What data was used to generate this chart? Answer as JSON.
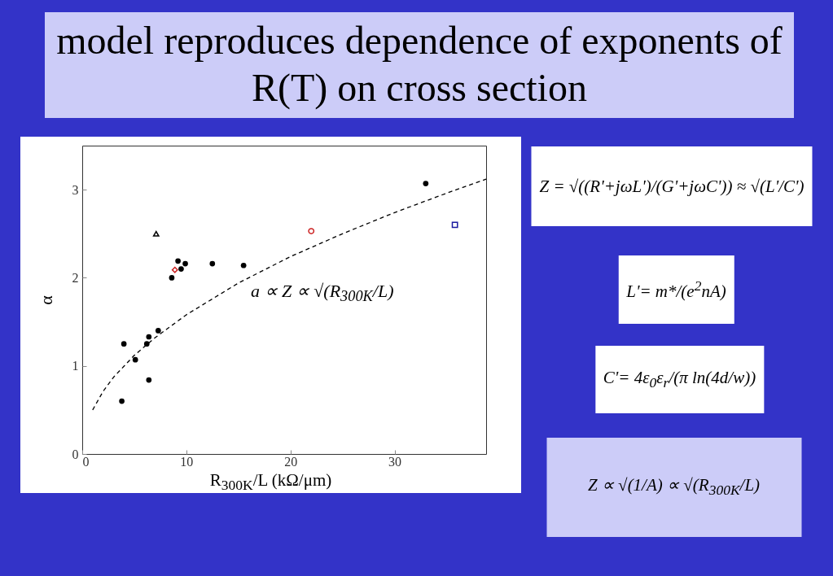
{
  "chart_data": {
    "type": "scatter",
    "title": "model reproduces dependence of exponents of R(T) on cross section",
    "xlabel": "R$_{300K}$/L (kΩ/μm)",
    "ylabel": "α",
    "xlim": [
      0,
      38.8
    ],
    "ylim": [
      0,
      3.5
    ],
    "xticks": [
      0,
      10,
      20,
      30
    ],
    "yticks": [
      0,
      1,
      2,
      3
    ],
    "grid": false,
    "annotations": [
      "a ∝ Z ∝ √(R$_{300K}$/L)",
      "Z = √((R'+jωL')/(G'+jωC')) ≈ √(L'/C')",
      "L'= m*/(e$^{2}$nA)",
      "C'= 4ε$_{0}$ε$_{r}$/(π ln(4d/w))",
      "Z ∝ √(1/A) ∝ √(R$_{300K}$/L)"
    ],
    "series": [
      {
        "marker": "circle",
        "color": "#000000",
        "x": [
          3.8,
          4.0,
          5.1,
          6.2,
          6.4,
          6.4,
          7.3,
          8.6,
          9.2,
          9.5,
          9.9,
          12.5,
          15.5,
          33.0
        ],
        "values": [
          0.6,
          1.25,
          1.07,
          1.25,
          1.33,
          0.84,
          1.4,
          2.0,
          2.19,
          2.1,
          2.16,
          2.16,
          2.14,
          3.07
        ]
      },
      {
        "marker": "triangle",
        "color": "#000000",
        "x": [
          7.1
        ],
        "values": [
          2.5
        ]
      },
      {
        "marker": "diamond",
        "color": "#cc2222",
        "x": [
          8.9
        ],
        "values": [
          2.09
        ]
      },
      {
        "marker": "circle",
        "color": "#cc2222",
        "x": [
          22.0
        ],
        "values": [
          2.53
        ]
      },
      {
        "marker": "square",
        "color": "#1a1aa0",
        "x": [
          35.8
        ],
        "values": [
          2.6
        ]
      },
      {
        "type": "line",
        "marker": "none",
        "line_style": "dashed",
        "color": "#000000",
        "x": [
          1,
          2,
          3,
          5,
          7,
          10,
          15,
          20,
          25,
          30,
          35,
          38.8
        ],
        "values": [
          0.5,
          0.71,
          0.87,
          1.12,
          1.32,
          1.58,
          1.94,
          2.24,
          2.5,
          2.74,
          2.96,
          3.12
        ]
      }
    ]
  }
}
